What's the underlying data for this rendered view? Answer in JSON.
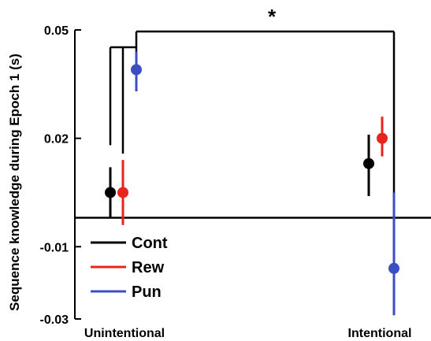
{
  "chart_data": {
    "type": "scatter",
    "ylabel": "Sequence knowledge during Epoch 1 (s)",
    "categories": [
      "Unintentional",
      "Intentional"
    ],
    "ylim": [
      -0.03,
      0.05
    ],
    "yticks": [
      0.05,
      0.02,
      -0.01,
      -0.03
    ],
    "ytick_labels": [
      "0.05",
      "0.02",
      "-0.01",
      "-0.03"
    ],
    "reference_line_y": -0.002,
    "legend_position": "bottom-left",
    "series": [
      {
        "name": "Cont",
        "color": "#000000",
        "points": [
          {
            "category": "Unintentional",
            "mean": 0.005,
            "low": -0.002,
            "high": 0.012
          },
          {
            "category": "Intentional",
            "mean": 0.013,
            "low": 0.004,
            "high": 0.021
          }
        ]
      },
      {
        "name": "Rew",
        "color": "#e8251c",
        "points": [
          {
            "category": "Unintentional",
            "mean": 0.005,
            "low": -0.004,
            "high": 0.014
          },
          {
            "category": "Intentional",
            "mean": 0.02,
            "low": 0.015,
            "high": 0.026
          }
        ]
      },
      {
        "name": "Pun",
        "color": "#3b4fc4",
        "points": [
          {
            "category": "Unintentional",
            "mean": 0.039,
            "low": 0.033,
            "high": 0.044
          },
          {
            "category": "Intentional",
            "mean": -0.016,
            "low": -0.029,
            "high": 0.005
          }
        ]
      }
    ],
    "significance": {
      "label": "*"
    }
  }
}
